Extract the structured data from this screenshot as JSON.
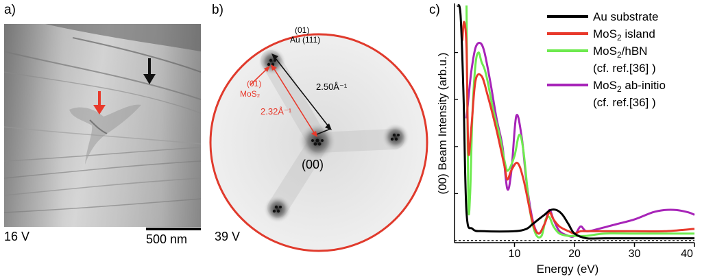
{
  "figure": {
    "panel_a": {
      "label": "a)",
      "voltage": "16 V",
      "scalebar_label": "500 nm",
      "arrow_colors": {
        "red": "#e8392b",
        "black": "#111111"
      }
    },
    "panel_b": {
      "label": "b)",
      "voltage": "39 V",
      "circle_color": "#e03a2c",
      "au_index": "(01)",
      "au_label": "Au (111)",
      "au_distance": "2.50Å⁻¹",
      "mos2_index": "(01)",
      "mos2_label": "MoS₂",
      "mos2_distance": "2.32Å⁻¹",
      "center_label": "(00)"
    },
    "panel_c": {
      "label": "c)"
    }
  },
  "chart_data": {
    "type": "line",
    "title": "",
    "xlabel": "Energy (eV)",
    "ylabel": "(00) Beam Intensity (arb.u.)",
    "xlim": [
      0,
      40
    ],
    "ylim": [
      0,
      1
    ],
    "xticks": [
      "10",
      "20",
      "30",
      "40"
    ],
    "xtick_values": [
      10,
      20,
      30,
      40
    ],
    "legend_position": "top-right",
    "series": [
      {
        "name": "Au substrate",
        "legend": [
          "Au substrate"
        ],
        "color": "#000000",
        "x": [
          0.5,
          1.0,
          1.5,
          2.0,
          3,
          5,
          10,
          12,
          13,
          14,
          15,
          16,
          17,
          18,
          19,
          20,
          22,
          25,
          30,
          35,
          40
        ],
        "y": [
          1.0,
          0.96,
          0.62,
          0.12,
          0.05,
          0.04,
          0.04,
          0.05,
          0.07,
          0.09,
          0.11,
          0.13,
          0.13,
          0.11,
          0.07,
          0.03,
          0.01,
          0.01,
          0.01,
          0.01,
          0.01
        ]
      },
      {
        "name": "MoS2 island",
        "legend": [
          "MoS",
          "2",
          " island"
        ],
        "color": "#e8392b",
        "x": [
          1.3,
          1.6,
          2.0,
          2.3,
          2.8,
          3.5,
          4.5,
          5.5,
          7,
          8.3,
          8.8,
          9.5,
          10.5,
          11.5,
          13,
          14,
          15,
          15.8,
          16.5,
          17.5,
          19,
          20,
          21,
          22,
          25,
          30,
          35,
          40
        ],
        "y": [
          0.85,
          0.93,
          0.82,
          0.38,
          0.48,
          0.68,
          0.7,
          0.62,
          0.47,
          0.32,
          0.26,
          0.3,
          0.33,
          0.26,
          0.08,
          0.03,
          0.07,
          0.12,
          0.09,
          0.06,
          0.04,
          0.03,
          0.04,
          0.04,
          0.04,
          0.04,
          0.04,
          0.05
        ]
      },
      {
        "name": "MoS2/hBN (cf. ref. [36])",
        "legend": [
          "MoS",
          "2",
          "/hBN",
          "(cf. ref.[36] )"
        ],
        "color": "#6eea4f",
        "x": [
          2.0,
          2.3,
          2.6,
          3.0,
          3.5,
          4.0,
          4.5,
          5.0,
          5.5,
          6.5,
          7.5,
          8.5,
          9.0,
          10.0,
          10.8,
          11.5,
          12.5,
          13.5,
          14.5,
          15.2,
          15.8,
          16.5,
          17.5,
          19,
          20,
          22,
          25,
          30,
          35,
          40
        ],
        "y": [
          1.0,
          0.18,
          0.2,
          0.55,
          0.75,
          0.8,
          0.76,
          0.73,
          0.68,
          0.55,
          0.45,
          0.32,
          0.3,
          0.36,
          0.45,
          0.38,
          0.14,
          0.03,
          0.02,
          0.09,
          0.1,
          0.06,
          0.03,
          0.02,
          0.02,
          0.02,
          0.03,
          0.03,
          0.03,
          0.03
        ]
      },
      {
        "name": "MoS2 ab-initio (cf. ref. [36])",
        "legend": [
          "MoS",
          "2",
          " ab-initio",
          "(cf. ref.[36] )"
        ],
        "color": "#a724b8",
        "x": [
          2.0,
          2.3,
          2.8,
          3.5,
          4.3,
          5.0,
          6.0,
          7.0,
          8.0,
          8.8,
          9.5,
          10.3,
          11.2,
          12.0,
          13.0,
          14.0,
          15.0,
          15.8,
          16.5,
          17.5,
          19.0,
          20.0,
          21.0,
          22.0,
          24,
          27,
          30,
          33,
          35,
          37,
          39,
          40
        ],
        "y": [
          0.52,
          0.6,
          0.72,
          0.82,
          0.84,
          0.8,
          0.67,
          0.52,
          0.4,
          0.22,
          0.3,
          0.53,
          0.44,
          0.25,
          0.09,
          0.03,
          0.07,
          0.13,
          0.09,
          0.04,
          0.02,
          0.02,
          0.06,
          0.04,
          0.05,
          0.07,
          0.09,
          0.12,
          0.13,
          0.13,
          0.12,
          0.11
        ]
      }
    ]
  }
}
